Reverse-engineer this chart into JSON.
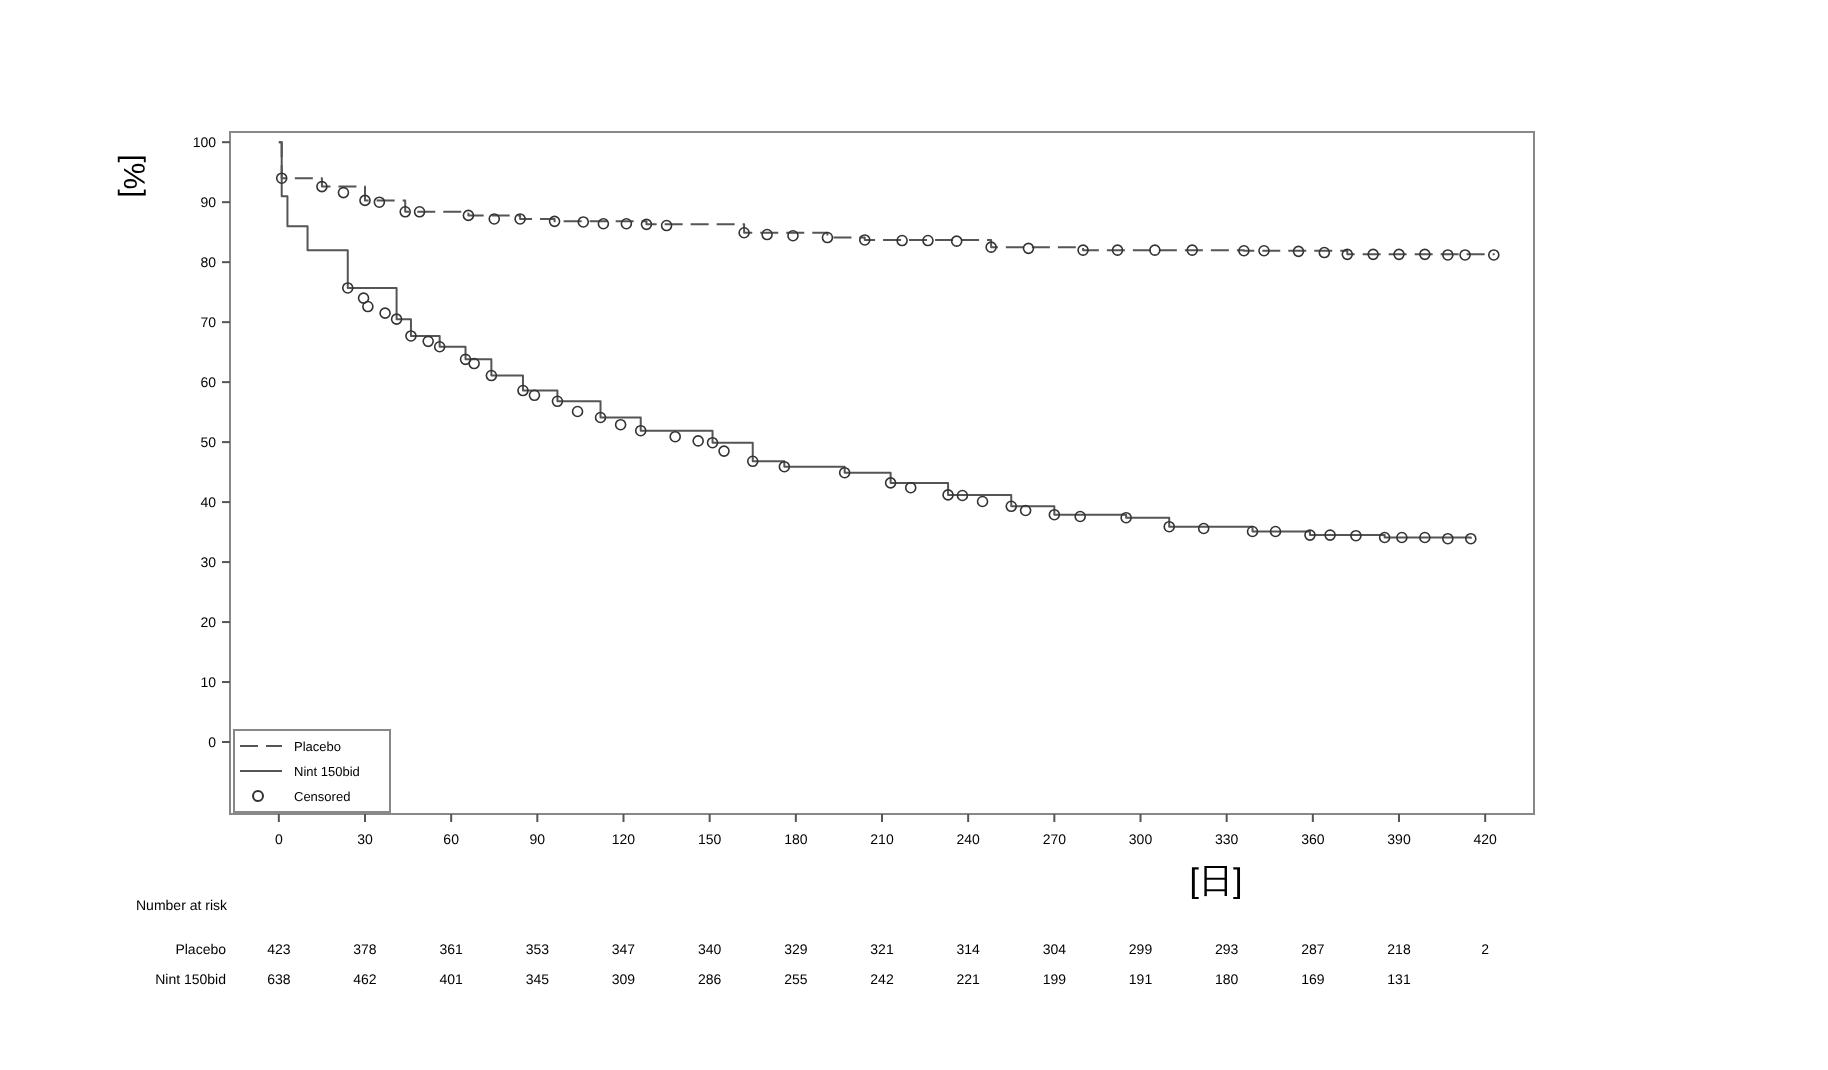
{
  "chart_data": {
    "type": "step",
    "xlabel": "[日]",
    "ylabel": "[%]",
    "xlim": [
      -17,
      437
    ],
    "ylim": [
      -12,
      101.7
    ],
    "xticks": [
      0,
      30,
      60,
      90,
      120,
      150,
      180,
      210,
      240,
      270,
      300,
      330,
      360,
      390,
      420
    ],
    "yticks": [
      0,
      10,
      20,
      30,
      40,
      50,
      60,
      70,
      80,
      90,
      100
    ],
    "grid": false,
    "legend": "bottom left",
    "series": [
      {
        "name": "Placebo",
        "color": "#555555",
        "line_style": "dashed",
        "x": [
          0,
          1,
          15,
          30,
          44,
          66,
          84,
          96,
          128,
          162,
          191,
          204,
          248,
          280,
          336,
          372,
          423
        ],
        "values": [
          100,
          94,
          92.6,
          90.3,
          88.4,
          87.8,
          87.2,
          86.8,
          86.3,
          84.9,
          84.1,
          83.7,
          82.5,
          82,
          81.9,
          81.3,
          81.2
        ]
      },
      {
        "name": "Nint 150bid",
        "color": "#555555",
        "line_style": "solid",
        "x": [
          0,
          1,
          3,
          10,
          24,
          41,
          46,
          56,
          65,
          74,
          85,
          97,
          112,
          126,
          151,
          165,
          176,
          197,
          213,
          233,
          255,
          270,
          295,
          310,
          339,
          359,
          385,
          415
        ],
        "values": [
          100,
          91,
          86,
          82,
          75.7,
          70.5,
          67.7,
          65.9,
          63.8,
          61.1,
          58.6,
          56.8,
          54.1,
          51.9,
          49.9,
          46.8,
          45.9,
          44.9,
          43.2,
          41.2,
          39.3,
          37.9,
          37.4,
          35.9,
          35.1,
          34.5,
          34.1,
          33.9
        ]
      },
      {
        "name": "Censored",
        "type": "scatter",
        "color": "#333333",
        "marker": "circle",
        "x": [
          1,
          15,
          22.5,
          30,
          35,
          44,
          49,
          66,
          75,
          84,
          96,
          106,
          113,
          121,
          128,
          135,
          162,
          170,
          179,
          191,
          204,
          217,
          226,
          236,
          248,
          261,
          280,
          292,
          305,
          318,
          336,
          343,
          355,
          364,
          372,
          381,
          390,
          399,
          407,
          413,
          423,
          24,
          29.5,
          31,
          37,
          41,
          46,
          52,
          56,
          65,
          68,
          74,
          85,
          89,
          97,
          104,
          112,
          119,
          126,
          138,
          146,
          151,
          155,
          165,
          176,
          197,
          213,
          220,
          233,
          238,
          245,
          255,
          260,
          270,
          279,
          295,
          310,
          322,
          339,
          347,
          359,
          366,
          375,
          385,
          391,
          399,
          407,
          415
        ],
        "values": [
          94,
          92.6,
          91.6,
          90.3,
          90,
          88.4,
          88.4,
          87.8,
          87.2,
          87.2,
          86.8,
          86.7,
          86.4,
          86.4,
          86.3,
          86.1,
          84.9,
          84.6,
          84.4,
          84.1,
          83.7,
          83.6,
          83.6,
          83.5,
          82.5,
          82.3,
          82,
          82,
          82,
          82,
          81.9,
          81.9,
          81.8,
          81.6,
          81.3,
          81.3,
          81.3,
          81.3,
          81.2,
          81.2,
          81.2,
          75.7,
          74,
          72.6,
          71.5,
          70.5,
          67.7,
          66.8,
          65.9,
          63.8,
          63.1,
          61.1,
          58.6,
          57.8,
          56.8,
          55.1,
          54.1,
          52.9,
          51.9,
          50.9,
          50.2,
          49.9,
          48.5,
          46.8,
          45.9,
          44.9,
          43.2,
          42.4,
          41.2,
          41.1,
          40.1,
          39.3,
          38.6,
          37.9,
          37.6,
          37.4,
          35.9,
          35.6,
          35.1,
          35.1,
          34.5,
          34.5,
          34.4,
          34.1,
          34.1,
          34.1,
          33.9,
          33.9
        ]
      }
    ],
    "annotations": [
      "Number at risk",
      "Placebo 423 378 361 353 347 340 329 321 314 304 299 293 287 218 2",
      "Nint 150bid 638 462 401 345 309 286 255 242 221 199 191 180 169 131"
    ]
  }
}
